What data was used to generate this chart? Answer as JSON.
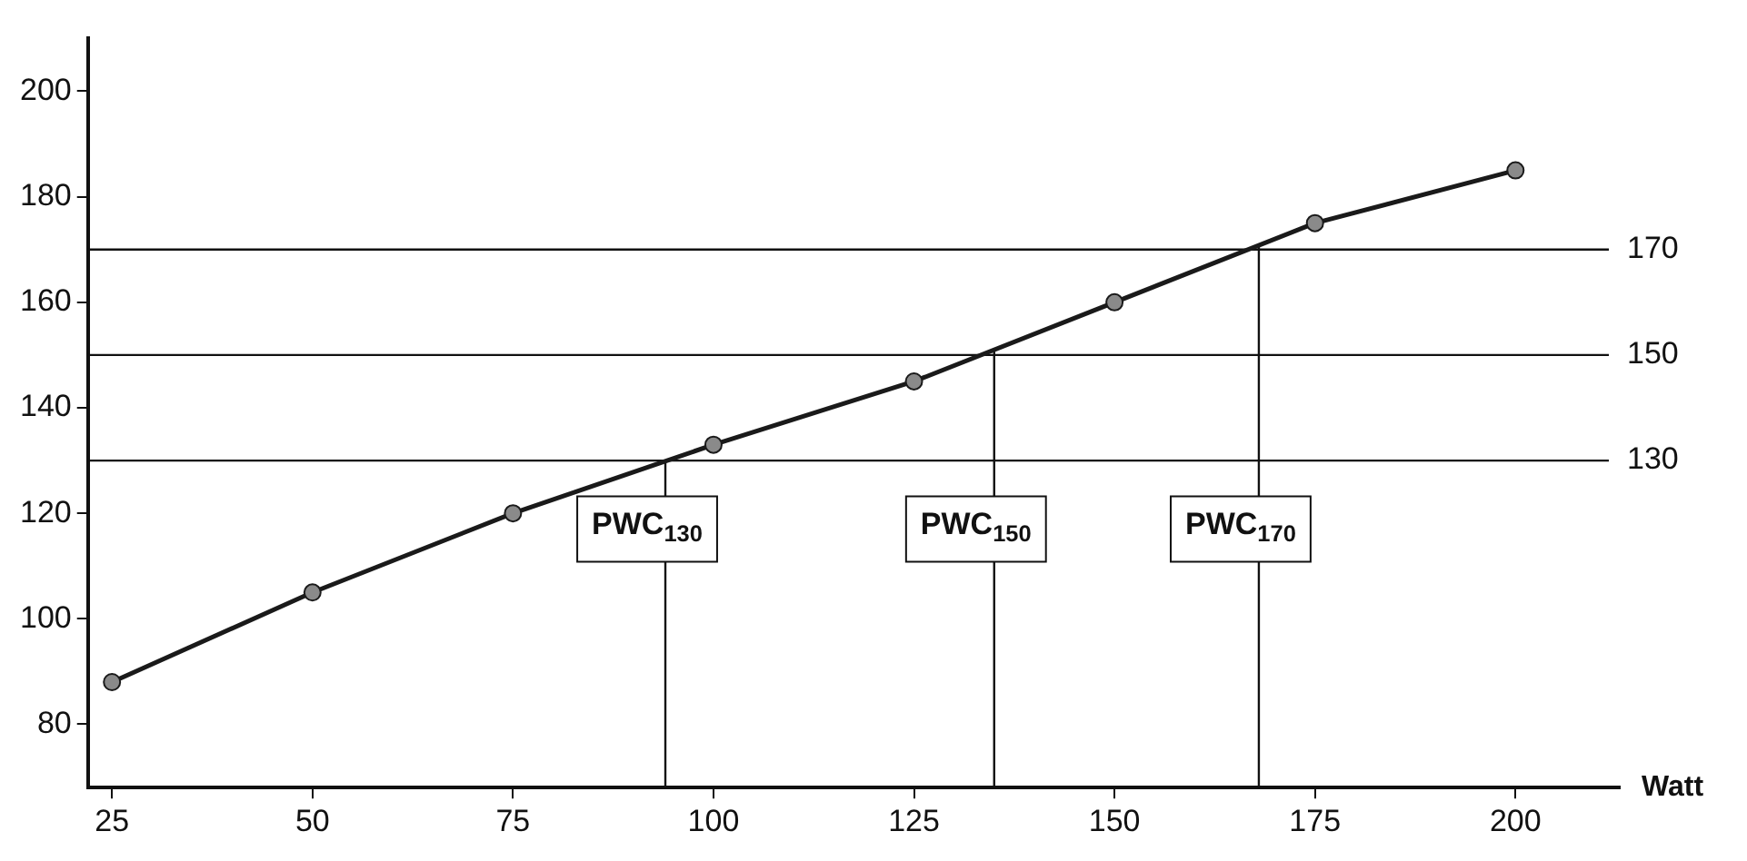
{
  "chart_data": {
    "type": "line",
    "xlabel": "Watt",
    "x": [
      25,
      50,
      75,
      100,
      125,
      150,
      175,
      200
    ],
    "series": [
      {
        "color": "#1a1a1a",
        "values": [
          88,
          105,
          120,
          133,
          145,
          160,
          175,
          185
        ]
      }
    ],
    "xlim": [
      22,
      213
    ],
    "xticks": [
      25,
      50,
      75,
      100,
      125,
      150,
      175,
      200
    ],
    "ylim": [
      68,
      210
    ],
    "yticks": [
      80,
      100,
      120,
      140,
      160,
      180,
      200
    ],
    "grid": false,
    "marker": "circle",
    "line_style": "solid",
    "ref_lines": [
      {
        "axis": "y",
        "value": 130,
        "label": "130"
      },
      {
        "axis": "y",
        "value": 150,
        "label": "150"
      },
      {
        "axis": "y",
        "value": 170,
        "label": "170"
      },
      {
        "axis": "x",
        "value": 94,
        "label": "PWC$_{130}$"
      },
      {
        "axis": "x",
        "value": 135,
        "label": "PWC$_{150}$"
      },
      {
        "axis": "x",
        "value": 168,
        "label": "PWC$_{170}$"
      }
    ]
  }
}
